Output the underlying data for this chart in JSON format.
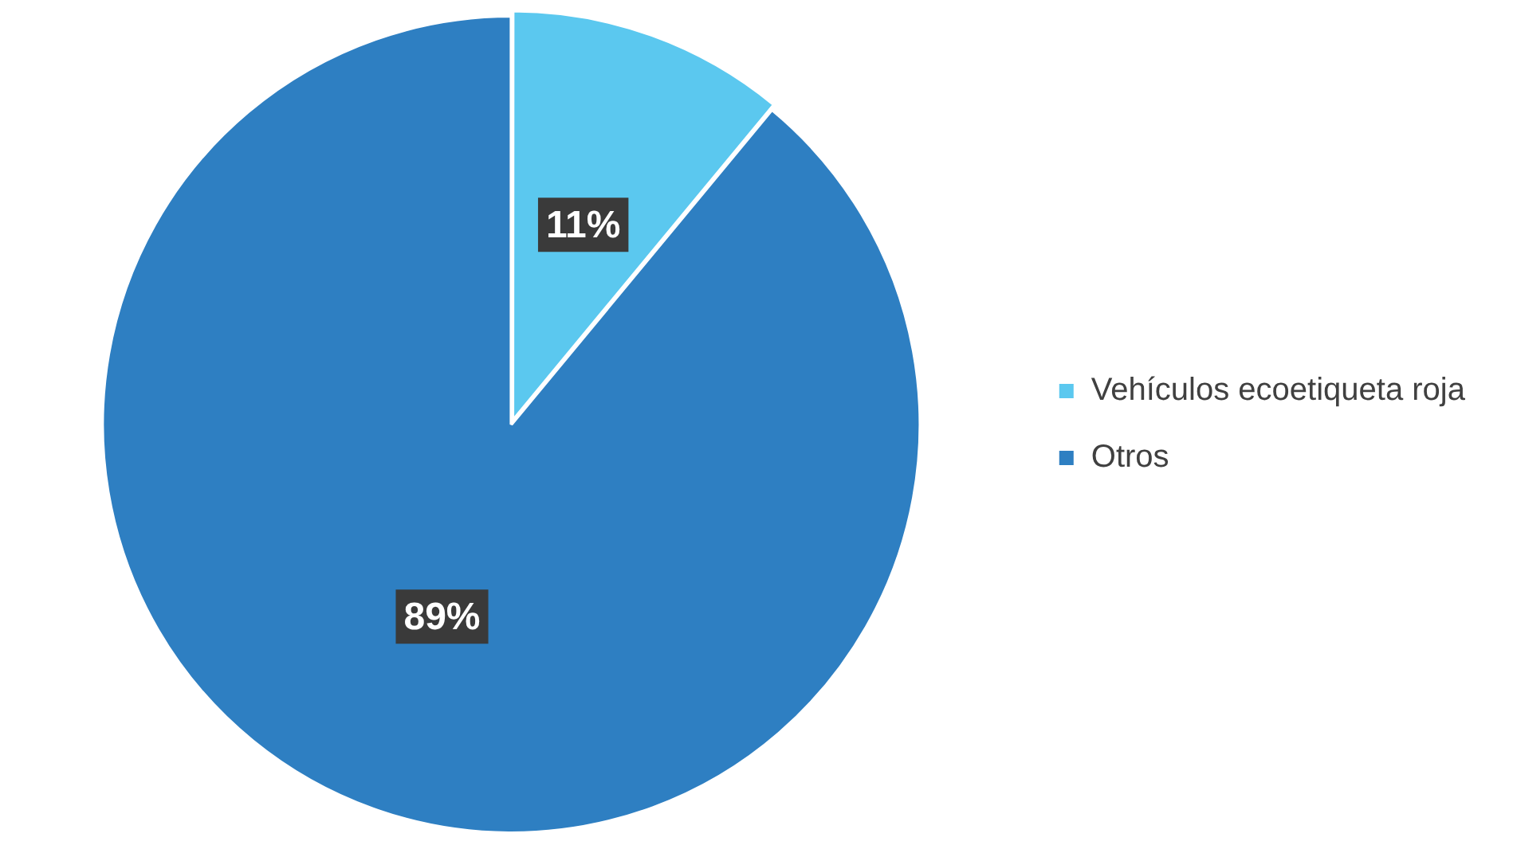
{
  "chart_data": {
    "type": "pie",
    "categories": [
      "Vehículos ecoetiqueta roja",
      "Otros"
    ],
    "values": [
      11,
      89
    ],
    "colors": [
      "#5bc8ef",
      "#2e7fc2"
    ],
    "value_labels": [
      "11%",
      "89%"
    ],
    "legend": "right"
  }
}
